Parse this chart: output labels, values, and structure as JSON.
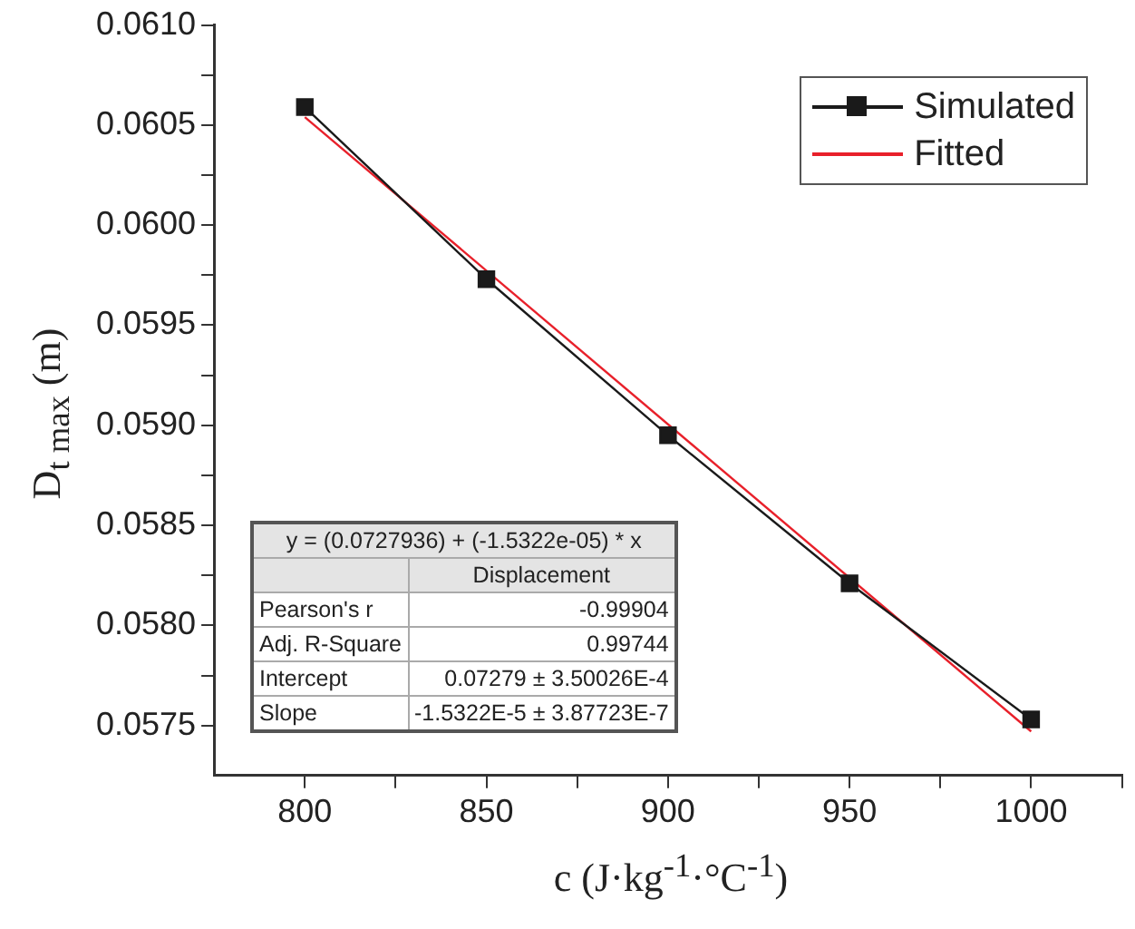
{
  "chart_data": {
    "type": "line",
    "xlabel": "c (J·kg$^{-1}$·°C$^{-1}$)",
    "ylabel": "D$_{t max}$ (m)",
    "x": [
      800,
      850,
      900,
      950,
      1000
    ],
    "series": [
      {
        "name": "Simulated",
        "color": "#1a1a1a",
        "values": [
          0.06059,
          0.05973,
          0.05895,
          0.05821,
          0.05753
        ],
        "marker": "square"
      },
      {
        "name": "Fitted",
        "color": "#e8202a",
        "type": "line",
        "x": [
          800,
          1000
        ],
        "values": [
          0.06054,
          0.05747
        ],
        "marker": "none"
      }
    ],
    "xlim": [
      775,
      1025
    ],
    "xticks": [
      800,
      {
        "value": 825,
        "label": null
      },
      850,
      {
        "value": 875,
        "label": null
      },
      900,
      {
        "value": 925,
        "label": null
      },
      950,
      {
        "value": 975,
        "label": null
      },
      1000,
      {
        "value": 1025,
        "label": null
      }
    ],
    "ylim": [
      0.05725,
      0.061
    ],
    "yticks": [
      {
        "value": 0.0575,
        "label": "0.0575"
      },
      {
        "value": 0.05775,
        "label": null
      },
      {
        "value": 0.058,
        "label": "0.0580"
      },
      {
        "value": 0.05825,
        "label": null
      },
      {
        "value": 0.0585,
        "label": "0.0585"
      },
      {
        "value": 0.05875,
        "label": null
      },
      {
        "value": 0.059,
        "label": "0.0590"
      },
      {
        "value": 0.05925,
        "label": null
      },
      {
        "value": 0.0595,
        "label": "0.0595"
      },
      {
        "value": 0.05975,
        "label": null
      },
      {
        "value": 0.06,
        "label": "0.0600"
      },
      {
        "value": 0.06025,
        "label": null
      },
      {
        "value": 0.0605,
        "label": "0.0605"
      },
      {
        "value": 0.06075,
        "label": null
      },
      {
        "value": 0.061,
        "label": "0.0610"
      }
    ],
    "annotations": [
      "y = (0.0727936) + (-1.5322e-05) * x",
      "Displacement",
      "Pearson's r",
      "-0.99904",
      "Adj. R-Square",
      "0.99744",
      "Intercept",
      "0.07279 ± 3.50026E-4",
      "Slope",
      "-1.5322E-5 ± 3.87723E-7"
    ],
    "grid": false,
    "legend": "top right",
    "line_style": "solid"
  }
}
